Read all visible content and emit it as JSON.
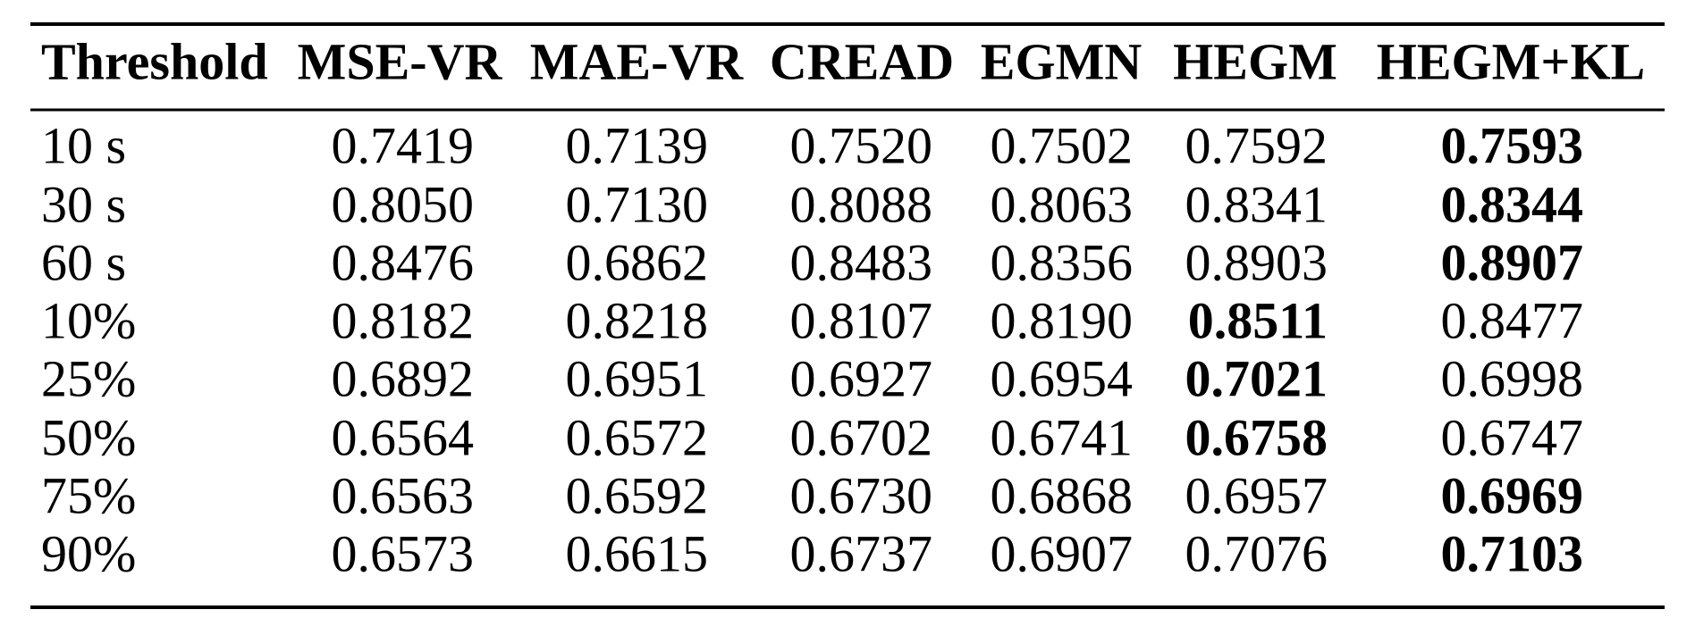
{
  "table": {
    "header": [
      "Threshold",
      "MSE-VR",
      "MAE-VR",
      "CREAD",
      "EGMN",
      "HEGM",
      "HEGM+KL"
    ],
    "rows": [
      [
        "10 s",
        "0.7419",
        "0.7139",
        "0.7520",
        "0.7502",
        "0.7592",
        {
          "text": "0.7593",
          "bold": true
        }
      ],
      [
        "30 s",
        "0.8050",
        "0.7130",
        "0.8088",
        "0.8063",
        "0.8341",
        {
          "text": "0.8344",
          "bold": true
        }
      ],
      [
        "60 s",
        "0.8476",
        "0.6862",
        "0.8483",
        "0.8356",
        "0.8903",
        {
          "text": "0.8907",
          "bold": true
        }
      ],
      [
        "10%",
        "0.8182",
        "0.8218",
        "0.8107",
        "0.8190",
        {
          "text": "0.8511",
          "bold": true
        },
        "0.8477"
      ],
      [
        "25%",
        "0.6892",
        "0.6951",
        "0.6927",
        "0.6954",
        {
          "text": "0.7021",
          "bold": true
        },
        "0.6998"
      ],
      [
        "50%",
        "0.6564",
        "0.6572",
        "0.6702",
        "0.6741",
        {
          "text": "0.6758",
          "bold": true
        },
        "0.6747"
      ],
      [
        "75%",
        "0.6563",
        "0.6592",
        "0.6730",
        "0.6868",
        "0.6957",
        {
          "text": "0.6969",
          "bold": true
        }
      ],
      [
        "90%",
        "0.6573",
        "0.6615",
        "0.6737",
        "0.6907",
        "0.7076",
        {
          "text": "0.7103",
          "bold": true
        }
      ]
    ]
  }
}
